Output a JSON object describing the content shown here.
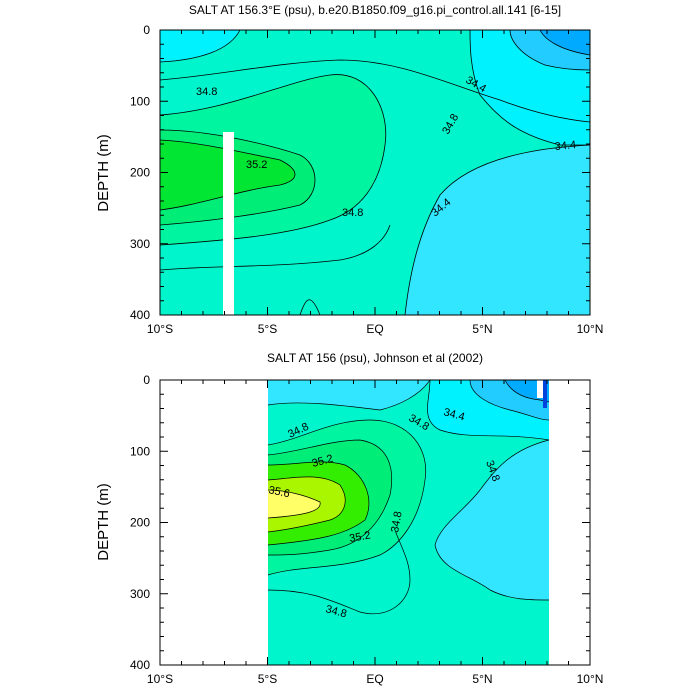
{
  "chart_data": [
    {
      "type": "heatmap",
      "title": "SALT AT 156.3°E (psu), b.e20.B1850.f09_g16.pi_control.all.141 [6-15]",
      "xlabel": "",
      "ylabel": "DEPTH (m)",
      "xlim": [
        -10,
        10
      ],
      "ylim": [
        400,
        0
      ],
      "xticks": [
        "10°S",
        "5°S",
        "EQ",
        "5°N",
        "10°N"
      ],
      "yticks": [
        "0",
        "100",
        "200",
        "300",
        "400"
      ],
      "contour_labels": [
        "34.8",
        "34.4",
        "34.8",
        "34.4",
        "35.2",
        "34.8",
        "34.4"
      ],
      "fill_colors": [
        "#00aaff",
        "#22ccff",
        "#33e6ff",
        "#00f2ff",
        "#00f5cc",
        "#00f5a0",
        "#00ee77",
        "#00e633",
        "#33ee00"
      ]
    },
    {
      "type": "heatmap",
      "title": "SALT AT 156 (psu), Johnson et al (2002)",
      "xlabel": "",
      "ylabel": "DEPTH (m)",
      "xlim": [
        -10,
        10
      ],
      "ylim": [
        400,
        0
      ],
      "xticks": [
        "10°S",
        "5°S",
        "EQ",
        "5°N",
        "10°N"
      ],
      "yticks": [
        "0",
        "100",
        "200",
        "300",
        "400"
      ],
      "data_extent_lon": [
        -5,
        8
      ],
      "contour_labels": [
        "34.8",
        "34.8",
        "34.4",
        "35.2",
        "34.8",
        "35.6",
        "35.2",
        "34.8",
        "34.8"
      ],
      "fill_colors": [
        "#0044dd",
        "#00aaff",
        "#33e6ff",
        "#00f2ff",
        "#00f5cc",
        "#00f5a0",
        "#00ee77",
        "#33ee00",
        "#aaf500",
        "#ffff66"
      ]
    }
  ]
}
